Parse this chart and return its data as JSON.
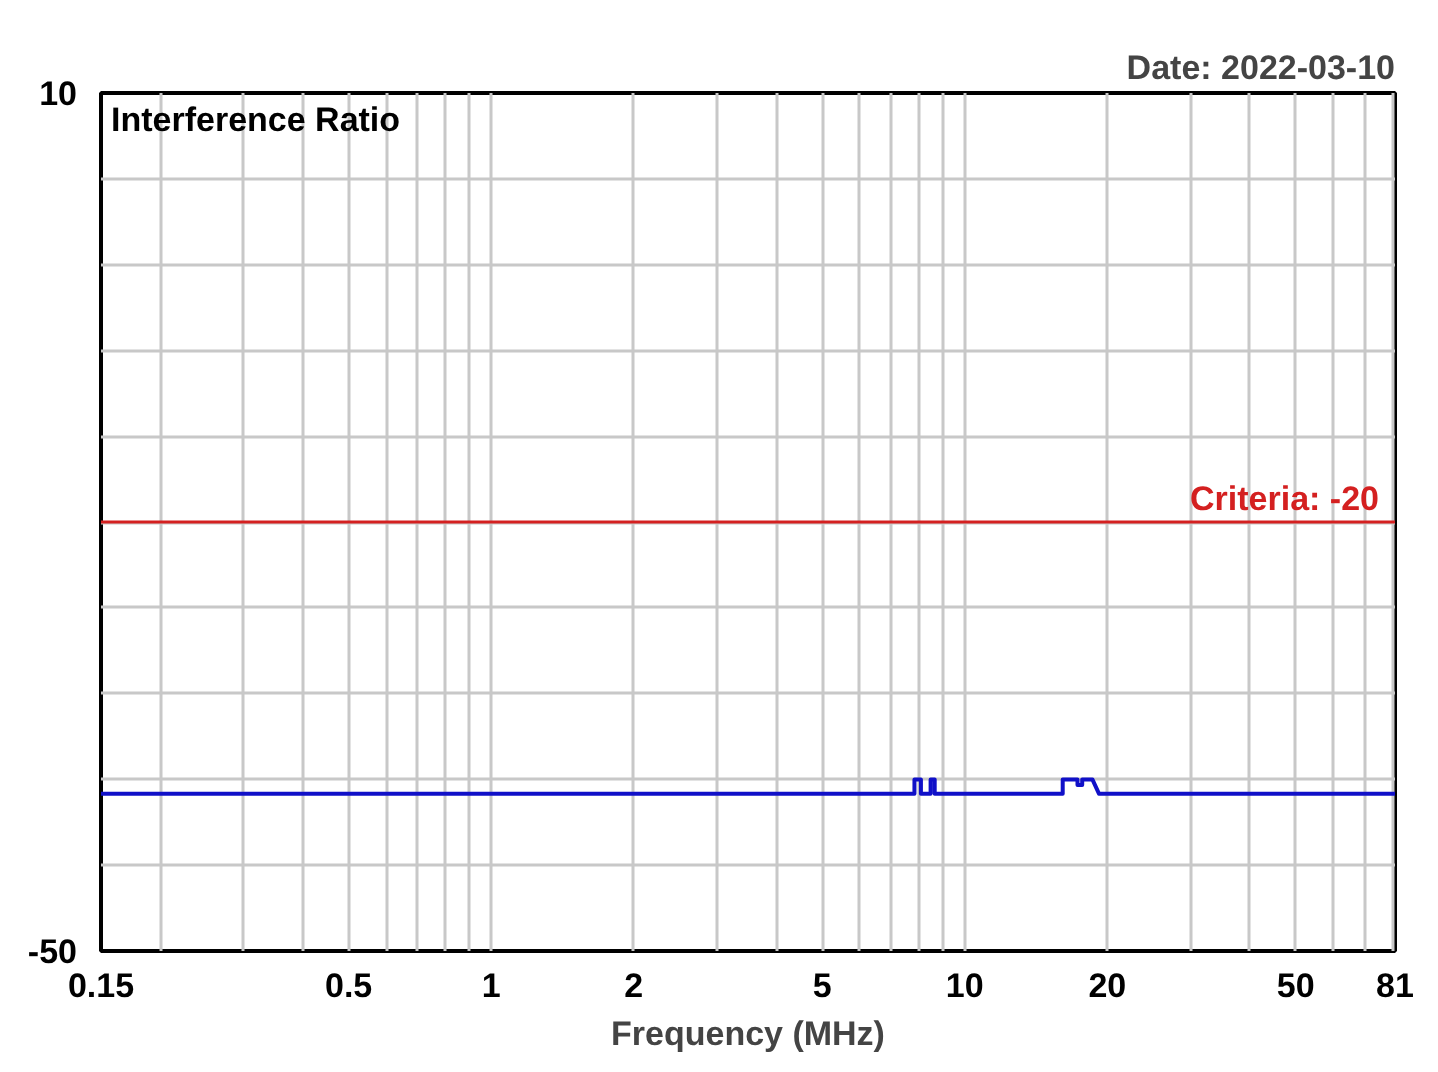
{
  "chart_data": {
    "type": "line",
    "title": "Interference Ratio",
    "xlabel": "Frequency (MHz)",
    "annotations": [
      "Date: 2022-03-10"
    ],
    "log": "x",
    "grid": true,
    "xlim": [
      0.15,
      81
    ],
    "ylim": [
      -50,
      10
    ],
    "xticks": [
      0.15,
      {
        "value": 0.2,
        "label": null
      },
      {
        "value": 0.3,
        "label": null
      },
      {
        "value": 0.4,
        "label": null
      },
      0.5,
      {
        "value": 0.6,
        "label": null
      },
      {
        "value": 0.7,
        "label": null
      },
      {
        "value": 0.8,
        "label": null
      },
      {
        "value": 0.9,
        "label": null
      },
      1,
      2,
      {
        "value": 3,
        "label": null
      },
      {
        "value": 4,
        "label": null
      },
      5,
      {
        "value": 6,
        "label": null
      },
      {
        "value": 7,
        "label": null
      },
      {
        "value": 8,
        "label": null
      },
      {
        "value": 9,
        "label": null
      },
      10,
      20,
      {
        "value": 30,
        "label": null
      },
      {
        "value": 40,
        "label": null
      },
      50,
      {
        "value": 60,
        "label": null
      },
      {
        "value": 70,
        "label": null
      },
      {
        "value": 80,
        "label": null
      },
      81
    ],
    "yticks": [
      10,
      {
        "value": 4,
        "label": null
      },
      {
        "value": -2,
        "label": null
      },
      {
        "value": -8,
        "label": null
      },
      {
        "value": -14,
        "label": null
      },
      {
        "value": -20,
        "label": null
      },
      {
        "value": -26,
        "label": null
      },
      {
        "value": -32,
        "label": null
      },
      {
        "value": -38,
        "label": null
      },
      {
        "value": -44,
        "label": null
      },
      -50
    ],
    "ref_lines": [
      {
        "axis": "y",
        "value": -20,
        "label": "Criteria: -20",
        "color": "#d42020"
      }
    ],
    "series": [
      {
        "color": "#1010c8",
        "x": [
          0.15,
          7.83,
          7.83,
          8.08,
          8.08,
          8.47,
          8.47,
          8.64,
          8.64,
          16.1,
          16.1,
          17.3,
          17.3,
          17.7,
          17.7,
          18.6,
          19.2,
          81
        ],
        "values": [
          -39,
          -39,
          -38,
          -38,
          -39,
          -39,
          -38,
          -38,
          -39,
          -39,
          -38,
          -38,
          -38.4,
          -38.4,
          -38,
          -38,
          -39,
          -39
        ]
      }
    ]
  }
}
